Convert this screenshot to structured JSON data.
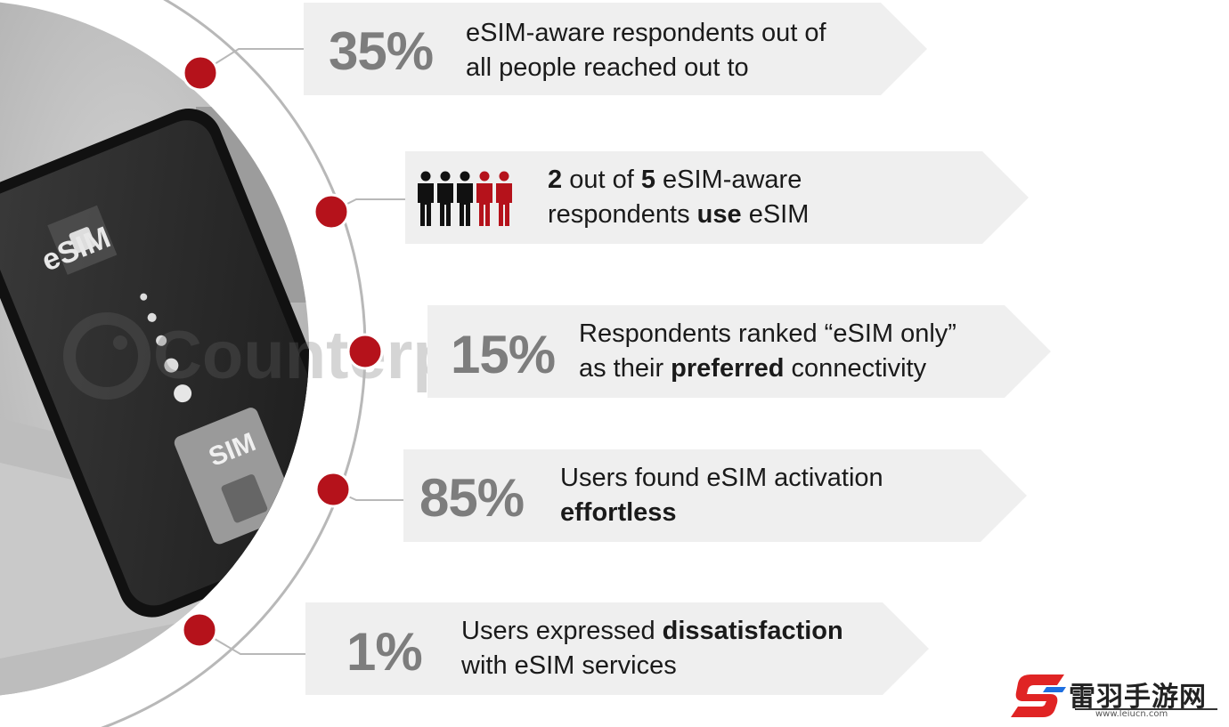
{
  "photo": {
    "esim_label": "eSIM",
    "sim_label": "SIM",
    "watermark": "Counterpoint"
  },
  "stats": [
    {
      "value": "35%",
      "line1": "eSIM-aware respondents out of",
      "line2": "all people reached out to"
    },
    {
      "icon": "people-icon",
      "line1_a": "2",
      "line1_b": " out of ",
      "line1_c": "5",
      "line1_d": " eSIM-aware",
      "line2_a": "respondents ",
      "line2_b": "use",
      "line2_c": " eSIM",
      "people_total": 5,
      "people_highlighted": 2
    },
    {
      "value": "15%",
      "line1": "Respondents ranked “eSIM only”",
      "line2_a": "as their ",
      "line2_b": "preferred",
      "line2_c": " connectivity"
    },
    {
      "value": "85%",
      "line1": "Users found eSIM activation",
      "line2": "effortless"
    },
    {
      "value": "1%",
      "line1_a": "Users expressed ",
      "line1_b": "dissatisfaction",
      "line2": "with eSIM services"
    }
  ],
  "logo": {
    "name": "雷羽手游网",
    "url": "www.leiucn.com"
  },
  "colors": {
    "accent": "#b5121b",
    "card": "#efefef",
    "pct": "#7d7d7d",
    "arc": "#b8b8b8",
    "people_dark": "#111111"
  }
}
